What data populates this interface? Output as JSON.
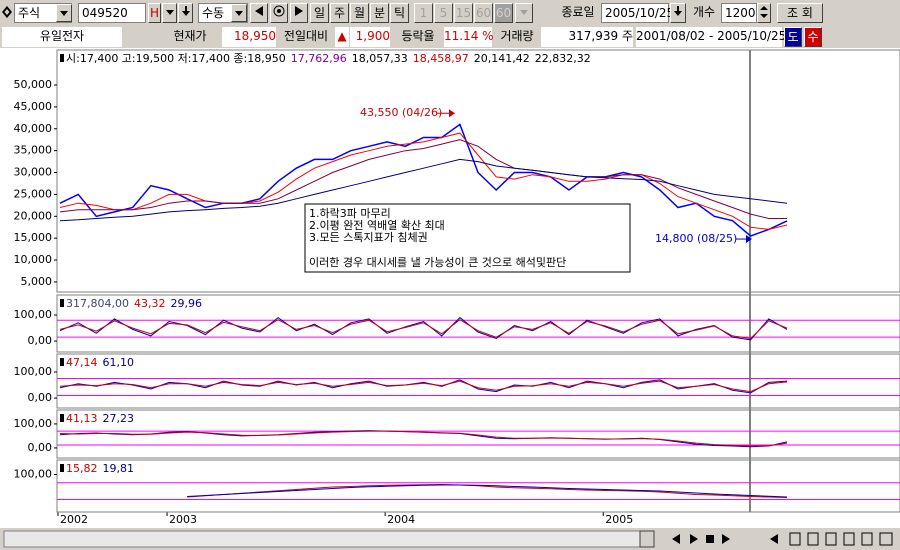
{
  "toolbar": {
    "market": "주식",
    "code": "049520",
    "code_flag": "H",
    "mode": "수동",
    "periods": [
      "일",
      "주",
      "월",
      "분",
      "틱"
    ],
    "minutes": [
      "1",
      "5",
      "15",
      "60",
      "60"
    ],
    "end_date_label": "종료일",
    "end_date": "2005/10/25",
    "count_label": "개수",
    "count": "1200",
    "query": "조 회"
  },
  "info_bar": {
    "name": "유일전자",
    "price_label": "현재가",
    "price": "18,950",
    "change_label": "전일대비",
    "change_sign": "▲",
    "change": "1,900",
    "rate_label": "등락율",
    "rate": "11.14 %",
    "volume_label": "거래량",
    "volume": "317,939 주",
    "range": "2001/08/02 - 2005/10/25",
    "btn1": "도",
    "btn2": "수"
  },
  "chart_data": [
    {
      "type": "line",
      "categories": [
        "2002",
        null,
        null,
        null,
        null,
        null,
        "2003",
        null,
        null,
        null,
        null,
        null,
        null,
        null,
        null,
        null,
        null,
        null,
        "2004",
        null,
        null,
        null,
        null,
        null,
        null,
        null,
        null,
        null,
        null,
        null,
        "2005",
        null,
        null,
        null,
        null,
        null,
        null,
        null,
        null,
        null,
        null
      ],
      "legend": [
        {
          "text": "시:17,400 고:19,500 저:17,400 종:18,950",
          "color": "#000000"
        },
        {
          "text": "17,762,96",
          "color": "#8000a0"
        },
        {
          "text": "18,057,33",
          "color": "#000000"
        },
        {
          "text": "18,458,97",
          "color": "#cc0000"
        },
        {
          "text": "20,141,42",
          "color": "#000000"
        },
        {
          "text": "22,832,32",
          "color": "#000000"
        }
      ],
      "series": [
        {
          "color": "#0000ff",
          "values": [
            23000,
            25000,
            20000,
            21000,
            22000,
            27000,
            26000,
            24000,
            22000,
            23000,
            23000,
            24000,
            28000,
            31000,
            33000,
            33000,
            35000,
            36000,
            37000,
            36000,
            38000,
            38000,
            41000,
            30000,
            26000,
            30000,
            30000,
            29000,
            26000,
            29000,
            29000,
            30000,
            29000,
            26000,
            22000,
            23000,
            20000,
            19000,
            15500,
            17000,
            18950
          ]
        },
        {
          "color": "#ff0000",
          "values": [
            22000,
            23000,
            22500,
            21500,
            21500,
            23000,
            25000,
            25000,
            23500,
            23000,
            23000,
            23500,
            25500,
            28500,
            31000,
            32500,
            34000,
            35000,
            36000,
            36500,
            37000,
            38000,
            39000,
            34000,
            29000,
            28500,
            29500,
            29000,
            28000,
            28000,
            28500,
            29500,
            29500,
            27500,
            24500,
            23000,
            21500,
            20000,
            17500,
            17000,
            18000
          ]
        },
        {
          "color": "#800040",
          "values": [
            21000,
            21500,
            21500,
            21500,
            21500,
            22000,
            23000,
            23500,
            23500,
            23000,
            23000,
            23000,
            24000,
            26000,
            28000,
            30000,
            31500,
            33000,
            34000,
            35000,
            35500,
            36500,
            37500,
            36000,
            33000,
            31000,
            30500,
            30000,
            29500,
            29000,
            29000,
            29500,
            29500,
            28500,
            26500,
            25000,
            23500,
            22000,
            20500,
            19500,
            19500
          ]
        },
        {
          "color": "#000080",
          "values": [
            19000,
            19200,
            19500,
            19800,
            20000,
            20500,
            21000,
            21300,
            21500,
            21800,
            22000,
            22300,
            23000,
            24000,
            25000,
            26000,
            27000,
            28000,
            29000,
            30000,
            31000,
            32000,
            33000,
            32500,
            31500,
            31000,
            30500,
            30000,
            29500,
            29000,
            28800,
            28600,
            28400,
            28000,
            27000,
            26000,
            25000,
            24500,
            24000,
            23500,
            23000
          ]
        }
      ],
      "ylim": [
        2700,
        58000
      ],
      "yticks": [
        {
          "value": 5000,
          "label": "5,000"
        },
        {
          "value": 10000,
          "label": "10,000"
        },
        {
          "value": 15000,
          "label": "15,000"
        },
        {
          "value": 20000,
          "label": "20,000"
        },
        {
          "value": 25000,
          "label": "25,000"
        },
        {
          "value": 30000,
          "label": "30,000"
        },
        {
          "value": 35000,
          "label": "35,000"
        },
        {
          "value": 40000,
          "label": "40,000"
        },
        {
          "value": 45000,
          "label": "45,000"
        },
        {
          "value": 50000,
          "label": "50,000"
        }
      ],
      "annotations": [
        {
          "text": "43,550 (04/26)",
          "value": 43550,
          "color": "#cc0000"
        },
        {
          "text": "14,800 (08/25)",
          "value": 14800,
          "color": "#0000cc"
        }
      ],
      "note": [
        "1.하락3파 마무리",
        "2.이평 완전 역배열 확산 최대",
        "3.모든 스톡지표가 침체권",
        "이러한 경우 대시세를 낼 가능성이 큰 것으로 해석및판단"
      ]
    },
    {
      "type": "line",
      "legend": [
        {
          "text": "317,804,00",
          "color": "#404080"
        },
        {
          "text": "43,32",
          "color": "#cc0000"
        },
        {
          "text": "29,96",
          "color": "#000080"
        }
      ],
      "series": [
        {
          "color": "#0000cc",
          "values": [
            40,
            70,
            30,
            85,
            45,
            20,
            75,
            60,
            25,
            80,
            50,
            35,
            90,
            40,
            65,
            25,
            70,
            85,
            30,
            55,
            75,
            20,
            90,
            35,
            10,
            60,
            40,
            75,
            25,
            80,
            55,
            30,
            70,
            85,
            20,
            45,
            60,
            15,
            5,
            85,
            45
          ]
        },
        {
          "color": "#cc0000",
          "values": [
            45,
            62,
            38,
            78,
            50,
            28,
            68,
            62,
            32,
            72,
            55,
            40,
            82,
            45,
            60,
            32,
            65,
            80,
            36,
            52,
            70,
            28,
            82,
            40,
            15,
            55,
            45,
            70,
            30,
            75,
            58,
            35,
            65,
            80,
            28,
            42,
            58,
            20,
            10,
            78,
            50
          ]
        }
      ],
      "ylim": [
        -42,
        177
      ],
      "yticks": [
        {
          "value": 0,
          "label": "0,00"
        },
        {
          "value": 100,
          "label": "100,00"
        }
      ],
      "ref_lines": [
        80,
        15
      ]
    },
    {
      "type": "line",
      "legend": [
        {
          "text": "47,14",
          "color": "#cc0000"
        },
        {
          "text": "61,10",
          "color": "#000080"
        }
      ],
      "series": [
        {
          "color": "#0000cc",
          "values": [
            40,
            55,
            45,
            60,
            50,
            35,
            60,
            55,
            40,
            65,
            50,
            45,
            65,
            50,
            60,
            40,
            55,
            65,
            45,
            50,
            60,
            45,
            70,
            35,
            25,
            50,
            45,
            60,
            40,
            65,
            55,
            40,
            60,
            70,
            35,
            45,
            55,
            30,
            20,
            60,
            65
          ]
        },
        {
          "color": "#cc0000",
          "values": [
            45,
            50,
            48,
            55,
            52,
            40,
            55,
            55,
            45,
            60,
            52,
            48,
            60,
            52,
            57,
            45,
            52,
            60,
            48,
            50,
            57,
            48,
            65,
            40,
            30,
            45,
            47,
            55,
            45,
            60,
            55,
            45,
            57,
            65,
            40,
            45,
            52,
            35,
            25,
            55,
            62
          ]
        }
      ],
      "ylim": [
        -38,
        169
      ],
      "yticks": [
        {
          "value": 0,
          "label": "0,00"
        },
        {
          "value": 100,
          "label": "100,00"
        }
      ],
      "ref_lines": [
        75,
        10
      ]
    },
    {
      "type": "line",
      "legend": [
        {
          "text": "41,13",
          "color": "#cc0000"
        },
        {
          "text": "27,23",
          "color": "#000080"
        }
      ],
      "series": [
        {
          "color": "#0000cc",
          "values": [
            55,
            60,
            62,
            58,
            55,
            58,
            65,
            68,
            62,
            55,
            50,
            52,
            55,
            60,
            65,
            68,
            70,
            72,
            70,
            68,
            65,
            62,
            60,
            50,
            40,
            38,
            40,
            42,
            40,
            38,
            36,
            38,
            40,
            35,
            25,
            15,
            10,
            8,
            5,
            8,
            25
          ]
        },
        {
          "color": "#cc0000",
          "values": [
            60,
            58,
            60,
            60,
            57,
            57,
            62,
            66,
            64,
            58,
            53,
            52,
            54,
            58,
            62,
            66,
            68,
            70,
            70,
            68,
            66,
            63,
            61,
            54,
            45,
            40,
            40,
            41,
            40,
            39,
            37,
            37,
            39,
            36,
            29,
            20,
            14,
            11,
            8,
            9,
            20
          ]
        }
      ],
      "ylim": [
        -42,
        158
      ],
      "yticks": [
        {
          "value": 0,
          "label": "0,00"
        },
        {
          "value": 100,
          "label": "100,00"
        }
      ],
      "ref_lines": [
        70,
        12
      ]
    },
    {
      "type": "line",
      "legend": [
        {
          "text": "15,82",
          "color": "#cc0000"
        },
        {
          "text": "19,81",
          "color": "#000080"
        }
      ],
      "series": [
        {
          "color": "#cc0000",
          "values": [
            null,
            null,
            null,
            null,
            null,
            null,
            null,
            10,
            15,
            20,
            25,
            30,
            35,
            40,
            45,
            50,
            52,
            55,
            57,
            58,
            59,
            60,
            58,
            55,
            50,
            47,
            45,
            43,
            40,
            38,
            36,
            35,
            33,
            30,
            25,
            20,
            18,
            15,
            12,
            10,
            8
          ]
        },
        {
          "color": "#0000cc",
          "values": [
            null,
            null,
            null,
            null,
            null,
            null,
            null,
            12,
            16,
            20,
            24,
            28,
            32,
            36,
            40,
            44,
            48,
            51,
            53,
            55,
            57,
            58,
            58,
            57,
            55,
            52,
            50,
            47,
            44,
            42,
            40,
            38,
            36,
            34,
            30,
            26,
            22,
            19,
            16,
            13,
            10
          ]
        }
      ],
      "ylim": [
        -50,
        158
      ],
      "yticks": [
        {
          "value": 100,
          "label": "100,00"
        }
      ],
      "ref_lines": [
        67,
        0
      ]
    }
  ]
}
